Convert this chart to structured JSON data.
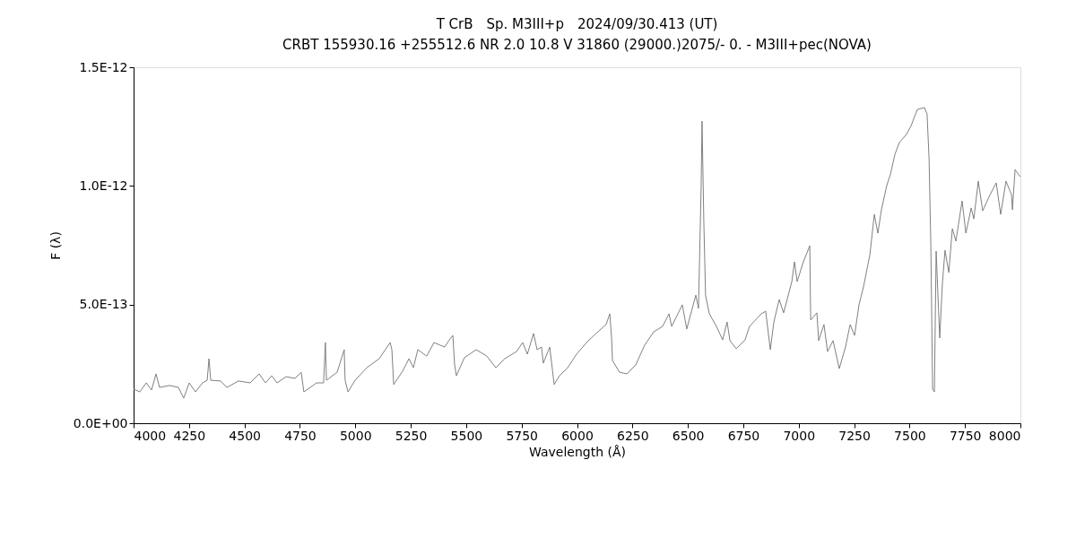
{
  "chart_data": {
    "type": "line",
    "title": "T CrB　Sp. M3III+p　2024/09/30.413 (UT)",
    "subtitle": "CRBT 155930.16 +255512.6 NR 2.0 10.8 V 31860 (29000.)2075/-  0. - M3III+pec(NOVA)",
    "xlabel": "Wavelength (Å)",
    "ylabel": "F (λ)",
    "x": [
      4000,
      4028,
      4057,
      4081,
      4101,
      4117,
      4162,
      4202,
      4226,
      4251,
      4279,
      4311,
      4332,
      4340,
      4348,
      4392,
      4421,
      4473,
      4526,
      4566,
      4595,
      4623,
      4647,
      4688,
      4728,
      4756,
      4768,
      4797,
      4825,
      4857,
      4865,
      4870,
      4918,
      4950,
      4954,
      4967,
      4999,
      5052,
      5108,
      5157,
      5165,
      5173,
      5213,
      5242,
      5262,
      5282,
      5322,
      5355,
      5403,
      5424,
      5440,
      5448,
      5456,
      5492,
      5545,
      5593,
      5634,
      5674,
      5727,
      5755,
      5776,
      5804,
      5820,
      5840,
      5848,
      5877,
      5897,
      5921,
      5958,
      5998,
      6051,
      6099,
      6131,
      6148,
      6156,
      6160,
      6192,
      6225,
      6265,
      6305,
      6346,
      6386,
      6415,
      6427,
      6475,
      6495,
      6536,
      6548,
      6560,
      6564,
      6572,
      6580,
      6597,
      6629,
      6657,
      6677,
      6690,
      6718,
      6758,
      6778,
      6831,
      6851,
      6872,
      6888,
      6912,
      6932,
      6969,
      6981,
      6993,
      7021,
      7050,
      7054,
      7082,
      7090,
      7114,
      7130,
      7155,
      7183,
      7211,
      7232,
      7252,
      7272,
      7292,
      7321,
      7341,
      7357,
      7373,
      7397,
      7414,
      7434,
      7454,
      7486,
      7507,
      7535,
      7567,
      7579,
      7588,
      7596,
      7604,
      7612,
      7620,
      7636,
      7648,
      7660,
      7677,
      7693,
      7709,
      7737,
      7754,
      7778,
      7790,
      7810,
      7830,
      7863,
      7891,
      7911,
      7935,
      7960,
      7964,
      7976,
      7992,
      8000
    ],
    "series": [
      {
        "color": "#808080",
        "values": [
          1.44e-13,
          1.32e-13,
          1.7e-13,
          1.4e-13,
          2.08e-13,
          1.51e-13,
          1.59e-13,
          1.51e-13,
          1.06e-13,
          1.7e-13,
          1.32e-13,
          1.7e-13,
          1.81e-13,
          2.72e-13,
          1.81e-13,
          1.78e-13,
          1.51e-13,
          1.78e-13,
          1.7e-13,
          2.08e-13,
          1.7e-13,
          2e-13,
          1.7e-13,
          1.96e-13,
          1.89e-13,
          2.15e-13,
          1.32e-13,
          1.51e-13,
          1.7e-13,
          1.7e-13,
          3.4e-13,
          1.81e-13,
          2.15e-13,
          3.1e-13,
          1.81e-13,
          1.32e-13,
          1.81e-13,
          2.34e-13,
          2.72e-13,
          3.4e-13,
          3.1e-13,
          1.63e-13,
          2.19e-13,
          2.72e-13,
          2.34e-13,
          3.1e-13,
          2.83e-13,
          3.4e-13,
          3.21e-13,
          3.51e-13,
          3.7e-13,
          2.46e-13,
          2e-13,
          2.76e-13,
          3.1e-13,
          2.83e-13,
          2.34e-13,
          2.72e-13,
          3.02e-13,
          3.4e-13,
          2.91e-13,
          3.78e-13,
          3.1e-13,
          3.21e-13,
          2.53e-13,
          3.21e-13,
          1.63e-13,
          2e-13,
          2.34e-13,
          2.91e-13,
          3.48e-13,
          3.89e-13,
          4.16e-13,
          4.61e-13,
          3.59e-13,
          2.64e-13,
          2.15e-13,
          2.08e-13,
          2.46e-13,
          3.29e-13,
          3.85e-13,
          4.08e-13,
          4.61e-13,
          4.08e-13,
          4.99e-13,
          3.97e-13,
          5.4e-13,
          4.84e-13,
          1.001e-12,
          1.273e-12,
          8.5e-13,
          5.37e-13,
          4.61e-13,
          4.08e-13,
          3.51e-13,
          4.27e-13,
          3.48e-13,
          3.14e-13,
          3.51e-13,
          4.08e-13,
          4.61e-13,
          4.72e-13,
          3.1e-13,
          4.27e-13,
          5.21e-13,
          4.65e-13,
          5.97e-13,
          6.8e-13,
          5.97e-13,
          6.8e-13,
          7.48e-13,
          4.35e-13,
          4.65e-13,
          3.48e-13,
          4.16e-13,
          3.02e-13,
          3.48e-13,
          2.3e-13,
          3.21e-13,
          4.16e-13,
          3.7e-13,
          4.99e-13,
          5.74e-13,
          7.1e-13,
          8.8e-13,
          8.01e-13,
          8.99e-13,
          1.001e-12,
          1.05e-12,
          1.133e-12,
          1.183e-12,
          1.217e-12,
          1.254e-12,
          1.322e-12,
          1.33e-12,
          1.303e-12,
          1.115e-12,
          7.48e-13,
          1.44e-13,
          1.32e-13,
          7.25e-13,
          3.59e-13,
          5.86e-13,
          7.29e-13,
          6.35e-13,
          8.2e-13,
          7.67e-13,
          9.37e-13,
          8.01e-13,
          9.07e-13,
          8.61e-13,
          1.02e-12,
          8.95e-13,
          9.63e-13,
          1.013e-12,
          8.8e-13,
          1.02e-12,
          9.63e-13,
          8.99e-13,
          1.069e-12,
          1.047e-12,
          1.039e-12
        ]
      }
    ],
    "xlim": [
      4000,
      8000
    ],
    "xticks": [
      4000,
      4250,
      4500,
      4750,
      5000,
      5250,
      5500,
      5750,
      6000,
      6250,
      6500,
      6750,
      7000,
      7250,
      7500,
      7750,
      8000
    ],
    "ylim": [
      0,
      1.5e-12
    ],
    "yticks": [
      {
        "value": 0,
        "label": "0.0E+00"
      },
      {
        "value": 5e-13,
        "label": "5.0E-13"
      },
      {
        "value": 1e-12,
        "label": "1.0E-12"
      },
      {
        "value": 1.5e-12,
        "label": "1.5E-12"
      }
    ],
    "grid": false
  }
}
